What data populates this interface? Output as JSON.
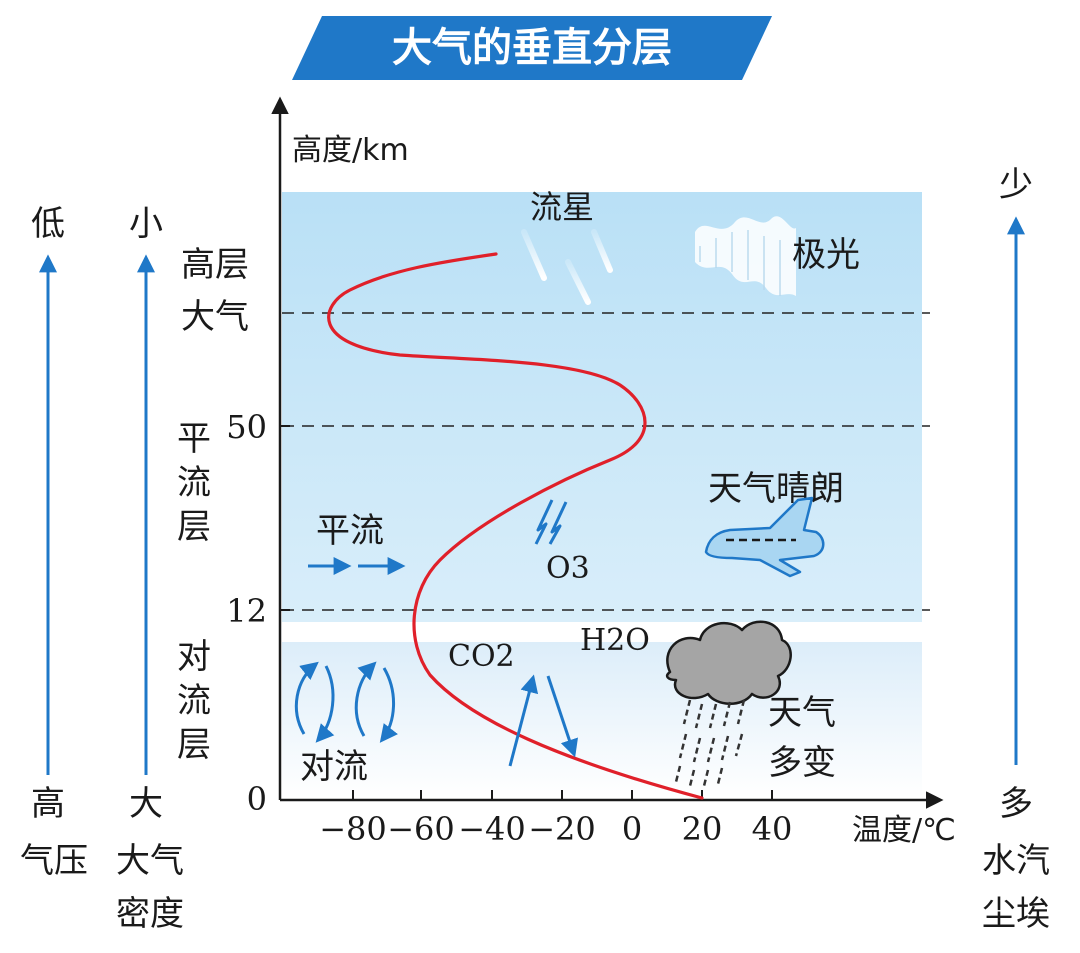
{
  "title": "大气的垂直分层",
  "axes": {
    "y_label": "高度/km",
    "x_label": "温度/℃",
    "y_ticks": [
      {
        "value": 0,
        "label": "0"
      },
      {
        "value": 12,
        "label": "12"
      },
      {
        "value": 50,
        "label": "50"
      }
    ],
    "x_ticks": [
      {
        "value": -80,
        "label": "−80"
      },
      {
        "value": -60,
        "label": "−60"
      },
      {
        "value": -40,
        "label": "−40"
      },
      {
        "value": -20,
        "label": "−20"
      },
      {
        "value": 0,
        "label": "0"
      },
      {
        "value": 20,
        "label": "20"
      },
      {
        "value": 40,
        "label": "40"
      }
    ]
  },
  "layers": {
    "upper": [
      "高层",
      "大气"
    ],
    "strato": [
      "平",
      "流",
      "层"
    ],
    "tropo": [
      "对",
      "流",
      "层"
    ]
  },
  "left_scales": {
    "pressure": {
      "top": "低",
      "bottom": [
        "高",
        "气压"
      ]
    },
    "density": {
      "top": "小",
      "bottom": [
        "大",
        "大气",
        "密度"
      ]
    }
  },
  "right_scale": {
    "top": "少",
    "bottom": [
      "多",
      "水汽",
      "尘埃"
    ]
  },
  "annotations": {
    "meteor": "流星",
    "aurora": "极光",
    "clear_weather": "天气晴朗",
    "ozone": "O3",
    "advection": "平流",
    "co2": "CO2",
    "h2o": "H2O",
    "changeable_weather": [
      "天气",
      "多变"
    ],
    "convection": "对流"
  },
  "colors": {
    "title_banner": "#1f78c8",
    "arrow_blue": "#1f78c8",
    "temperature_curve": "#e0202a",
    "upper_bg": "#cfe9f8",
    "tropo_bg": "#e8f4fc"
  }
}
